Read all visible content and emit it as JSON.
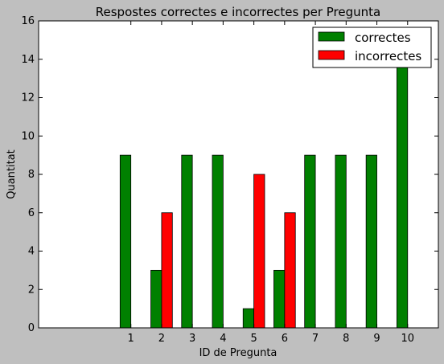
{
  "chart_data": {
    "type": "bar",
    "title": "Respostes correctes e incorrectes per Pregunta",
    "xlabel": "ID de Pregunta",
    "ylabel": "Quantitat",
    "categories": [
      "1",
      "2",
      "3",
      "4",
      "5",
      "6",
      "7",
      "8",
      "9",
      "10"
    ],
    "xlim": [
      -2,
      11
    ],
    "ylim": [
      0,
      16
    ],
    "yticks": [
      "0",
      "2",
      "4",
      "6",
      "8",
      "10",
      "12",
      "14",
      "16"
    ],
    "grid": false,
    "legend_position": "top-right",
    "series": [
      {
        "name": "correctes",
        "color": "#008000",
        "values": [
          9,
          3,
          9,
          9,
          1,
          3,
          9,
          9,
          9,
          14
        ]
      },
      {
        "name": "incorrectes",
        "color": "#ff0000",
        "values": [
          0,
          6,
          0,
          0,
          8,
          6,
          0,
          0,
          0,
          0
        ]
      }
    ]
  }
}
